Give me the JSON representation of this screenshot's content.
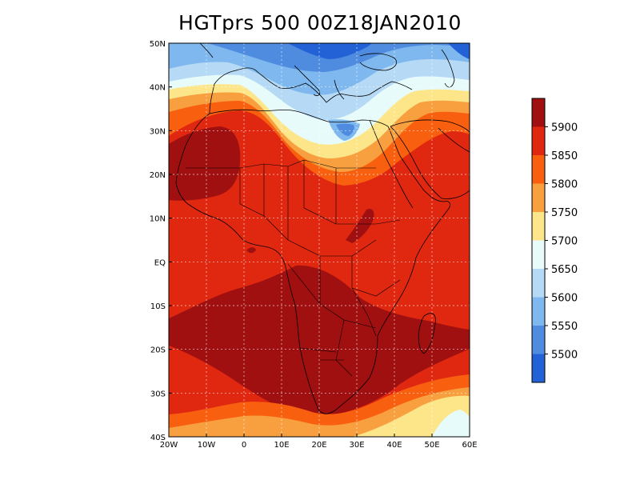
{
  "title": "HGTprs 500 00Z18JAN2010",
  "lat_labels": [
    "50N",
    "40N",
    "30N",
    "20N",
    "10N",
    "EQ",
    "10S",
    "20S",
    "30S",
    "40S"
  ],
  "lon_labels": [
    "20W",
    "10W",
    "0",
    "10E",
    "20E",
    "30E",
    "40E",
    "50E",
    "60E"
  ],
  "colorbar": {
    "labels": [
      "5900",
      "5850",
      "5800",
      "5750",
      "5700",
      "5650",
      "5600",
      "5550",
      "5500"
    ],
    "colors": [
      "#a01010",
      "#e02810",
      "#f86010",
      "#f8a040",
      "#fde68a",
      "#e8fbfb",
      "#b6daf5",
      "#7fb8ee",
      "#4f8ce0",
      "#2262d6"
    ]
  },
  "map_colors": {
    "deep_red": "#a01010",
    "red": "#e02810",
    "orange": "#f86010",
    "light_orange": "#f8a040",
    "pale_yellow": "#fde68a",
    "white_cyan": "#e8fbfb",
    "light_blue": "#b6daf5",
    "mid_blue": "#7fb8ee",
    "blue": "#4f8ce0",
    "dark_blue": "#2262d6"
  }
}
